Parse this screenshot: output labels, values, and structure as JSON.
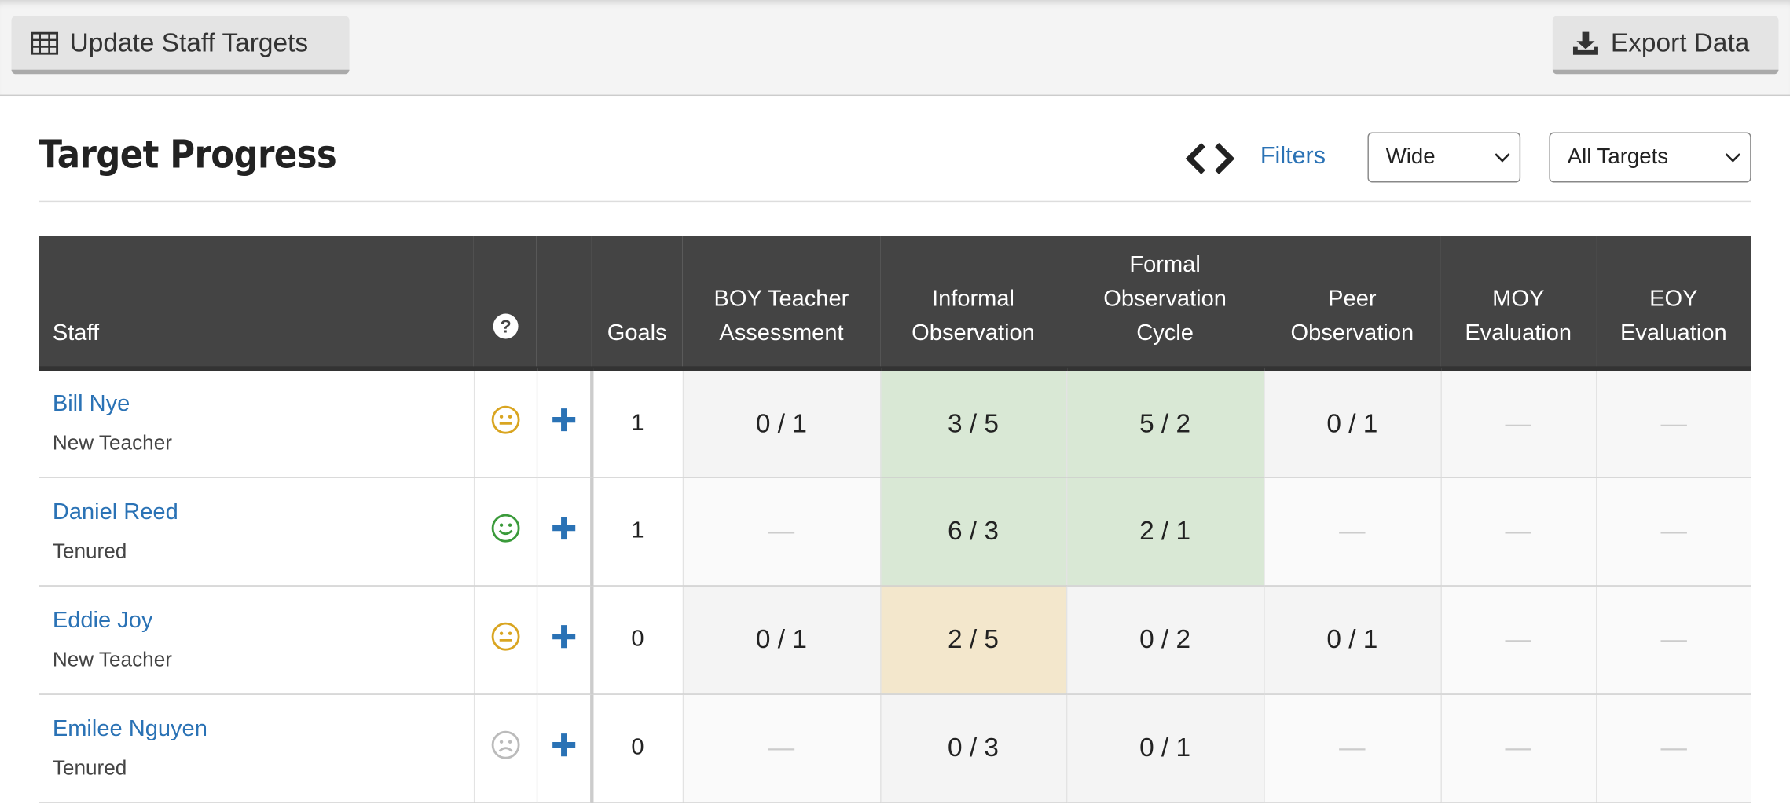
{
  "header": {
    "buttons": [
      "Update Staff Targets",
      "Export Data"
    ]
  },
  "title": "Target Progress",
  "controls": {
    "filters": "Filters",
    "view": "Wide",
    "targets": "All Targets"
  },
  "table": {
    "columns": [
      "Staff",
      "Goals",
      "BOY Teacher Assessment",
      "Informal Observation",
      "Formal Observation Cycle",
      "Peer Observation",
      "MOY Evaluation",
      "EOY Evaluation"
    ],
    "rows": [
      {
        "name": "Bill Nye",
        "role": "New Teacher",
        "goals": 1,
        "cells": [
          "0 / 1",
          "3 / 5",
          "5 / 2",
          "0 / 1",
          "—",
          "—"
        ]
      },
      {
        "name": "Daniel Reed",
        "role": "Tenured",
        "goals": 1,
        "cells": [
          "—",
          "6 / 3",
          "2 / 1",
          "—",
          "—",
          "—"
        ]
      },
      {
        "name": "Eddie Joy",
        "role": "New Teacher",
        "goals": 0,
        "cells": [
          "0 / 1",
          "2 / 5",
          "0 / 2",
          "0 / 1",
          "—",
          "—"
        ]
      },
      {
        "name": "Emilee Nguyen",
        "role": "Tenured",
        "goals": 0,
        "cells": [
          "—",
          "0 / 3",
          "0 / 1",
          "—",
          "—",
          "—"
        ]
      }
    ]
  }
}
